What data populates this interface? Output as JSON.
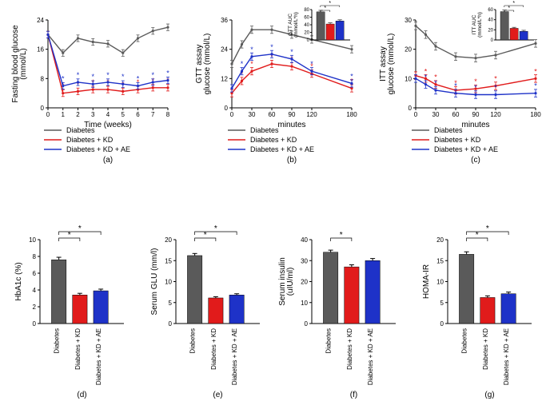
{
  "colors": {
    "diabetes": "#5a5a5a",
    "kd": "#e11b1b",
    "kdae": "#1e32c8",
    "axis": "#000000",
    "bg": "#ffffff"
  },
  "legend": {
    "items": [
      "Diabetes",
      "Diabetes + KD",
      "Diabetes + KD + AE"
    ]
  },
  "panelA": {
    "type": "line",
    "xlabel": "Time (weeks)",
    "ylabel": "Fasting blood glucose\n(mmol/L)",
    "xlim": [
      0,
      8
    ],
    "ylim": [
      0,
      24
    ],
    "ytick_step": 8,
    "x": [
      0,
      1,
      2,
      3,
      4,
      5,
      6,
      7,
      8
    ],
    "series": {
      "diabetes": [
        20,
        15,
        19,
        18,
        17.5,
        15,
        19,
        21,
        22
      ],
      "kd": [
        20,
        4,
        4.5,
        5,
        5,
        4.5,
        5,
        5.5,
        5.5
      ],
      "kdae": [
        20,
        6,
        7,
        6.5,
        7,
        6.5,
        6,
        7,
        7.5
      ]
    },
    "err": 0.9,
    "label": "(a)"
  },
  "panelB": {
    "type": "line",
    "xlabel": "minutes",
    "ylabel": "GTT assay\nglucose (mmol/L)",
    "xlim": [
      0,
      180
    ],
    "ylim": [
      0,
      36
    ],
    "ytick_step": 12,
    "x": [
      0,
      15,
      30,
      60,
      90,
      120,
      180
    ],
    "series": {
      "diabetes": [
        18,
        26,
        32,
        32,
        30,
        28,
        24
      ],
      "kd": [
        6,
        11,
        15,
        18,
        17,
        14,
        8
      ],
      "kdae": [
        8,
        15,
        21,
        22,
        20,
        15,
        10
      ]
    },
    "err": 1.5,
    "inset": {
      "ylabel": "GTT AUC\n(mmol/L*h)",
      "ylim": [
        0,
        80
      ],
      "ytick_step": 20,
      "values": [
        74,
        42,
        50
      ],
      "err": [
        4,
        3,
        3
      ]
    },
    "label": "(b)"
  },
  "panelC": {
    "type": "line",
    "xlabel": "minutes",
    "ylabel": "ITT assay\nglucose (mmol/L)",
    "xlim": [
      0,
      180
    ],
    "ylim": [
      0,
      30
    ],
    "ytick_step": 10,
    "x": [
      0,
      15,
      30,
      60,
      90,
      120,
      180
    ],
    "series": {
      "diabetes": [
        28,
        25,
        21,
        17.5,
        17,
        18,
        22
      ],
      "kd": [
        11,
        10,
        8,
        6,
        6.5,
        7.5,
        10
      ],
      "kdae": [
        10,
        8,
        6,
        5,
        4.5,
        4.5,
        5
      ]
    },
    "err": 1.3,
    "inset": {
      "ylabel": "ITT AUC\n(mmol/L*h)",
      "ylim": [
        0,
        60
      ],
      "ytick_step": 20,
      "values": [
        56,
        23,
        17
      ],
      "err": [
        3,
        2,
        2
      ]
    },
    "label": "(c)"
  },
  "bars": {
    "groups": [
      "Diabetes",
      "Diabetes + KD",
      "Diabetes + KD + AE"
    ],
    "panels": {
      "d": {
        "ylabel": "HbA1c (%)",
        "ylim": [
          0,
          10
        ],
        "ytick_step": 2,
        "values": [
          7.6,
          3.4,
          3.9
        ],
        "err": [
          0.3,
          0.2,
          0.2
        ],
        "sig": [
          true,
          true
        ],
        "label": "(d)"
      },
      "e": {
        "ylabel": "Serum GLU (mm/l)",
        "ylim": [
          0,
          20
        ],
        "ytick_step": 5,
        "values": [
          16.2,
          6.1,
          6.8
        ],
        "err": [
          0.5,
          0.3,
          0.3
        ],
        "sig": [
          true,
          true
        ],
        "label": "(e)"
      },
      "f": {
        "ylabel": "Serum insulin\n(uIU/ml)",
        "ylim": [
          0,
          40
        ],
        "ytick_step": 10,
        "values": [
          34,
          27,
          30
        ],
        "err": [
          1,
          1,
          1
        ],
        "sig": [
          true,
          false
        ],
        "label": "(f)"
      },
      "g": {
        "ylabel": "HOMA-IR",
        "ylim": [
          0,
          20
        ],
        "ytick_step": 5,
        "values": [
          16.5,
          6.2,
          7.1
        ],
        "err": [
          0.6,
          0.4,
          0.4
        ],
        "sig": [
          true,
          true
        ],
        "label": "(g)"
      }
    }
  },
  "layout": {
    "topRow": {
      "y": 10,
      "h": 130,
      "plotW": 150,
      "plotH": 110,
      "x": [
        60,
        290,
        520
      ]
    },
    "legendY": 200,
    "botRow": {
      "y": 300,
      "h": 130,
      "plotW": 105,
      "plotH": 105,
      "x": [
        50,
        220,
        390,
        560
      ]
    }
  },
  "font": {
    "axis": 10,
    "tick": 8,
    "legend": 9
  }
}
